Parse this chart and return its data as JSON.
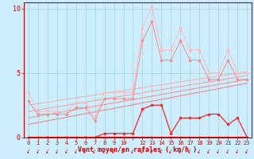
{
  "bg_color": "#cceeff",
  "grid_color": "#99cccc",
  "xlabel": "Vent moyen/en rafales ( km/h )",
  "ylim": [
    0,
    10.5
  ],
  "xlim": [
    -0.5,
    23.5
  ],
  "yticks": [
    0,
    5,
    10
  ],
  "x_tick_labels": [
    "0",
    "1",
    "2",
    "3",
    "4",
    "5",
    "6",
    "7",
    "8",
    "9",
    "10",
    "",
    "12",
    "13",
    "14",
    "15",
    "16",
    "17",
    "18",
    "19",
    "20",
    "21",
    "22",
    "23"
  ],
  "x_vals": [
    0,
    1,
    2,
    3,
    4,
    5,
    6,
    7,
    8,
    9,
    10,
    11,
    12,
    13,
    14,
    15,
    16,
    17,
    18,
    19,
    20,
    21,
    22,
    23
  ],
  "y_light1": [
    3.5,
    2.0,
    2.0,
    2.0,
    2.0,
    2.7,
    2.7,
    1.5,
    3.5,
    3.5,
    3.5,
    3.5,
    8.5,
    10.2,
    6.8,
    6.8,
    8.5,
    6.8,
    6.8,
    5.0,
    5.0,
    6.8,
    5.0,
    5.0
  ],
  "y_light2": [
    2.8,
    1.8,
    1.8,
    1.8,
    1.8,
    2.3,
    2.3,
    1.3,
    3.0,
    3.0,
    3.0,
    3.0,
    7.5,
    9.0,
    6.0,
    6.0,
    7.5,
    6.0,
    6.0,
    4.5,
    4.5,
    6.0,
    4.5,
    4.5
  ],
  "y_med": [
    0.0,
    0.0,
    0.0,
    0.0,
    0.0,
    0.0,
    0.0,
    0.0,
    0.3,
    0.3,
    0.3,
    0.3,
    2.2,
    2.5,
    2.5,
    0.3,
    1.5,
    1.5,
    1.5,
    1.8,
    1.8,
    1.0,
    1.5,
    0.0
  ],
  "y_dark": [
    0.0,
    0.0,
    0.0,
    0.0,
    0.0,
    0.0,
    0.0,
    0.0,
    0.0,
    0.0,
    0.0,
    0.0,
    0.0,
    0.0,
    0.0,
    0.0,
    0.0,
    0.0,
    0.0,
    0.0,
    0.0,
    0.0,
    0.0,
    0.0
  ],
  "trend_lines": [
    {
      "x": [
        0,
        23
      ],
      "y": [
        2.5,
        5.1
      ],
      "color": "#ffaaaa"
    },
    {
      "x": [
        0,
        23
      ],
      "y": [
        2.0,
        4.8
      ],
      "color": "#ff9999"
    },
    {
      "x": [
        0,
        23
      ],
      "y": [
        1.5,
        4.5
      ],
      "color": "#ff8888"
    },
    {
      "x": [
        0,
        23
      ],
      "y": [
        1.0,
        4.2
      ],
      "color": "#ff7777"
    }
  ],
  "color_light1": "#ffbbbb",
  "color_light2": "#ff8888",
  "color_med": "#ff2222",
  "color_dark": "#cc0000",
  "color_axis": "#cc0000",
  "lw_thin": 0.7,
  "lw_med": 0.9,
  "lw_thick": 1.4,
  "ms": 1.5
}
